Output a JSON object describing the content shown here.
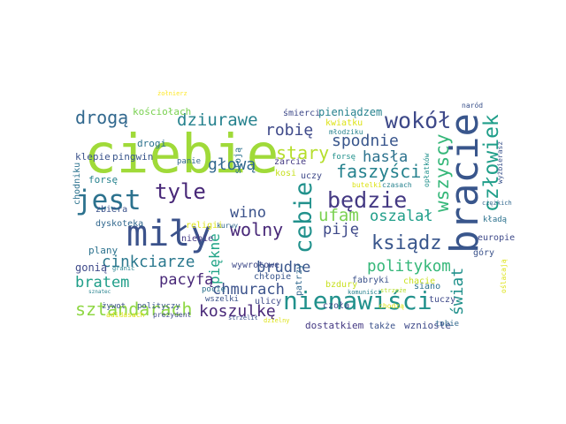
{
  "words": [
    {
      "text": "ciebie",
      "color": "#a0da39"
    },
    {
      "text": "miły",
      "color": "#3b528b"
    },
    {
      "text": "jest",
      "color": "#2c728e"
    },
    {
      "text": "bracie",
      "color": "#39568c"
    },
    {
      "text": "nienawiści",
      "color": "#21918c"
    },
    {
      "text": "wokół",
      "color": "#3e4989"
    },
    {
      "text": "tyle",
      "color": "#482878"
    },
    {
      "text": "cebie",
      "color": "#21918c"
    },
    {
      "text": "będzie",
      "color": "#443983"
    },
    {
      "text": "ksiądz",
      "color": "#39568c"
    },
    {
      "text": "człowiek",
      "color": "#1f9e89"
    },
    {
      "text": "wszyscy",
      "color": "#35b779"
    },
    {
      "text": "drogą",
      "color": "#31688e"
    },
    {
      "text": "dziurawe",
      "color": "#26828e"
    },
    {
      "text": "robię",
      "color": "#3e4989"
    },
    {
      "text": "stary",
      "color": "#b5de2b"
    },
    {
      "text": "spodnie",
      "color": "#39568c"
    },
    {
      "text": "hasła",
      "color": "#2c728e"
    },
    {
      "text": "faszyści",
      "color": "#26828e"
    },
    {
      "text": "głową",
      "color": "#31688e"
    },
    {
      "text": "wino",
      "color": "#3b528b"
    },
    {
      "text": "wolny",
      "color": "#482878"
    },
    {
      "text": "piękne",
      "color": "#20a386"
    },
    {
      "text": "piję",
      "color": "#3e4989"
    },
    {
      "text": "ufam",
      "color": "#7ad151"
    },
    {
      "text": "oszalał",
      "color": "#1f9e89"
    },
    {
      "text": "cinkciarze",
      "color": "#2a788e"
    },
    {
      "text": "pacyfą",
      "color": "#482878"
    },
    {
      "text": "bratem",
      "color": "#1f9e89"
    },
    {
      "text": "chmurach",
      "color": "#3b528b"
    },
    {
      "text": "brudne",
      "color": "#39568c"
    },
    {
      "text": "politykom",
      "color": "#35b779"
    },
    {
      "text": "sztandarach",
      "color": "#8fd744"
    },
    {
      "text": "koszulkę",
      "color": "#482878"
    },
    {
      "text": "świat",
      "color": "#21918c"
    },
    {
      "text": "kościołach",
      "color": "#7ad151"
    },
    {
      "text": "żołnierz",
      "color": "#fde725"
    },
    {
      "text": "śmierci",
      "color": "#3e4989"
    },
    {
      "text": "pieniądzem",
      "color": "#26828e"
    },
    {
      "text": "naród",
      "color": "#3b528b"
    },
    {
      "text": "kwiatku",
      "color": "#dde318"
    },
    {
      "text": "młodziku",
      "color": "#26828e"
    },
    {
      "text": "drogi",
      "color": "#2c728e"
    },
    {
      "text": "klepie",
      "color": "#3b528b"
    },
    {
      "text": "pingwin",
      "color": "#39568c"
    },
    {
      "text": "panie",
      "color": "#31688e"
    },
    {
      "text": "forsę",
      "color": "#26828e"
    },
    {
      "text": "stoją",
      "color": "#2c728e"
    },
    {
      "text": "żarcie",
      "color": "#443983"
    },
    {
      "text": "kosi",
      "color": "#c8e020"
    },
    {
      "text": "forsę",
      "color": "#21918c"
    },
    {
      "text": "uczy",
      "color": "#3e4989"
    },
    {
      "text": "chodniku",
      "color": "#2c728e"
    },
    {
      "text": "zbiera",
      "color": "#3b528b"
    },
    {
      "text": "dyskoteka",
      "color": "#31688e"
    },
    {
      "text": "religii",
      "color": "#dde318"
    },
    {
      "text": "kurwy",
      "color": "#31688e"
    },
    {
      "text": "niebie",
      "color": "#443983"
    },
    {
      "text": "plany",
      "color": "#2c728e"
    },
    {
      "text": "gonią",
      "color": "#3e4989"
    },
    {
      "text": "granic",
      "color": "#26828e"
    },
    {
      "text": "wywrotowe",
      "color": "#3e4989"
    },
    {
      "text": "chłopie",
      "color": "#39568c"
    },
    {
      "text": "pocie",
      "color": "#2c728e"
    },
    {
      "text": "wszelki",
      "color": "#3b528b"
    },
    {
      "text": "ulicy",
      "color": "#3e4989"
    },
    {
      "text": "patrzy",
      "color": "#31688e"
    },
    {
      "text": "bzdury",
      "color": "#c8e020"
    },
    {
      "text": "fabryki",
      "color": "#3b528b"
    },
    {
      "text": "chacie",
      "color": "#c8e020"
    },
    {
      "text": "komuniści",
      "color": "#26828e"
    },
    {
      "text": "strzeże",
      "color": "#b5de2b"
    },
    {
      "text": "siano",
      "color": "#2c728e"
    },
    {
      "text": "góry",
      "color": "#3b528b"
    },
    {
      "text": "europie",
      "color": "#3e4989"
    },
    {
      "text": "kładą",
      "color": "#2c728e"
    },
    {
      "text": "ciężkich",
      "color": "#31688e"
    },
    {
      "text": "wyżbierasz",
      "color": "#3b528b"
    },
    {
      "text": "opłatków",
      "color": "#21918c"
    },
    {
      "text": "butelki",
      "color": "#dde318"
    },
    {
      "text": "czasach",
      "color": "#26828e"
    },
    {
      "text": "oślacają",
      "color": "#dde318"
    },
    {
      "text": "czoła",
      "color": "#3e4989"
    },
    {
      "text": "chodzą",
      "color": "#dde318"
    },
    {
      "text": "tuczy",
      "color": "#3e4989"
    },
    {
      "text": "dostatkiem",
      "color": "#443983"
    },
    {
      "text": "także",
      "color": "#3b528b"
    },
    {
      "text": "wzniosłe",
      "color": "#3e4989"
    },
    {
      "text": "tobie",
      "color": "#31688e"
    },
    {
      "text": "sznatec",
      "color": "#26828e"
    },
    {
      "text": "żywot",
      "color": "#3b528b"
    },
    {
      "text": "polityczy",
      "color": "#39568c"
    },
    {
      "text": "adidasach",
      "color": "#dde318"
    },
    {
      "text": "prezydent",
      "color": "#3e4989"
    },
    {
      "text": "strzelił",
      "color": "#3b528b"
    },
    {
      "text": "dzielny",
      "color": "#dde318"
    }
  ]
}
